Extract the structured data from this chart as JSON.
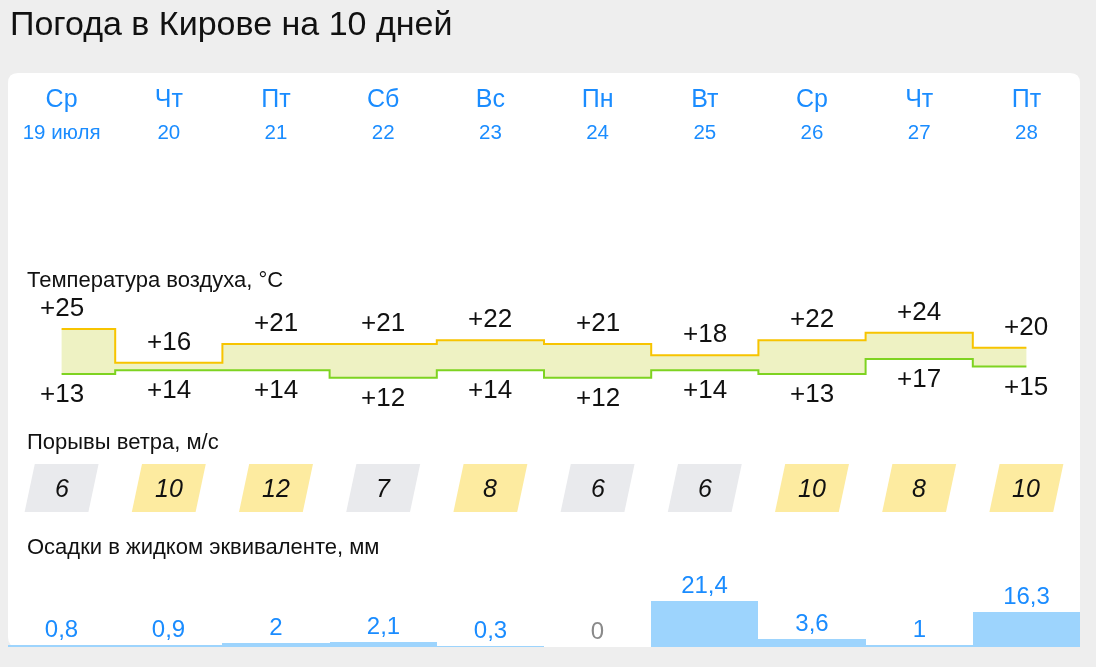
{
  "chart_data": [
    {
      "type": "step",
      "title": "Температура воздуха, °C",
      "annotations": [
        "Погода в Кирове на 10 дней"
      ],
      "categories": [
        "Ср\n19 июля",
        "Чт\n20",
        "Пт\n21",
        "Сб\n22",
        "Вс\n23",
        "Пн\n24",
        "Вт\n25",
        "Ср\n26",
        "Чт\n27",
        "Пт\n28"
      ],
      "series": [
        {
          "color": "#f7c400",
          "values": [
            25,
            16,
            21,
            21,
            22,
            21,
            18,
            22,
            24,
            20
          ],
          "value_labels": [
            "+25",
            "+16",
            "+21",
            "+21",
            "+22",
            "+21",
            "+18",
            "+22",
            "+24",
            "+20"
          ],
          "lower": [
            13,
            14,
            14,
            12,
            14,
            12,
            14,
            13,
            17,
            15
          ],
          "upper": [
            25,
            16,
            21,
            21,
            22,
            21,
            18,
            22,
            24,
            20
          ]
        },
        {
          "color": "#7ed321",
          "values": [
            13,
            14,
            14,
            12,
            14,
            12,
            14,
            13,
            17,
            15
          ],
          "value_labels": [
            "+13",
            "+14",
            "+14",
            "+12",
            "+14",
            "+12",
            "+14",
            "+13",
            "+17",
            "+15"
          ]
        }
      ]
    },
    {
      "type": "other",
      "title": "Порывы ветра, м/с",
      "values": [
        6,
        10,
        12,
        7,
        8,
        6,
        6,
        10,
        8,
        10
      ],
      "colors": [
        "#e9eaed",
        "#fdeba0",
        "#fdeba0",
        "#e9eaed",
        "#fdeba0",
        "#e9eaed",
        "#e9eaed",
        "#fdeba0",
        "#fdeba0",
        "#fdeba0"
      ],
      "data_labels": true
    },
    {
      "type": "bar",
      "title": "Осадки в жидком эквиваленте, мм",
      "values": [
        0.8,
        0.9,
        2,
        2.1,
        0.3,
        0,
        21.4,
        3.6,
        1,
        16.3
      ],
      "value_labels": [
        "0,8",
        "0,9",
        "2",
        "2,1",
        "0,3",
        "0",
        "21,4",
        "3,6",
        "1",
        "16,3"
      ],
      "color": "#9dd4fd"
    }
  ]
}
